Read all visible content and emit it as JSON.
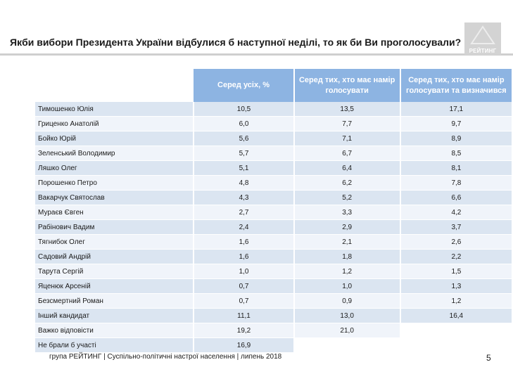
{
  "title": "Якби вибори Президента України відбулися б наступної неділі, то як би Ви проголосували?",
  "logo": {
    "text": "РЕЙТИНГ",
    "color": "#d3d3d3"
  },
  "table": {
    "headers": [
      "Серед усіх, %",
      "Серед тих, хто має намір голосувати",
      "Серед тих, хто має намір голосувати та визначився"
    ],
    "header_color": "#8db4e2",
    "rows": [
      {
        "name": "Тимошенко Юлія",
        "v1": "10,5",
        "v2": "13,5",
        "v3": "17,1"
      },
      {
        "name": "Гриценко Анатолій",
        "v1": "6,0",
        "v2": "7,7",
        "v3": "9,7"
      },
      {
        "name": "Бойко Юрій",
        "v1": "5,6",
        "v2": "7,1",
        "v3": "8,9"
      },
      {
        "name": "Зеленський Володимир",
        "v1": "5,7",
        "v2": "6,7",
        "v3": "8,5"
      },
      {
        "name": "Ляшко Олег",
        "v1": "5,1",
        "v2": "6,4",
        "v3": "8,1"
      },
      {
        "name": "Порошенко Петро",
        "v1": "4,8",
        "v2": "6,2",
        "v3": "7,8"
      },
      {
        "name": "Вакарчук Святослав",
        "v1": "4,3",
        "v2": "5,2",
        "v3": "6,6"
      },
      {
        "name": "Мураєв Євген",
        "v1": "2,7",
        "v2": "3,3",
        "v3": "4,2"
      },
      {
        "name": "Рабінович Вадим",
        "v1": "2,4",
        "v2": "2,9",
        "v3": "3,7"
      },
      {
        "name": "Тягнибок Олег",
        "v1": "1,6",
        "v2": "2,1",
        "v3": "2,6"
      },
      {
        "name": "Садовий Андрій",
        "v1": "1,6",
        "v2": "1,8",
        "v3": "2,2"
      },
      {
        "name": "Тарута Сергій",
        "v1": "1,0",
        "v2": "1,2",
        "v3": "1,5"
      },
      {
        "name": "Яценюк Арсеній",
        "v1": "0,7",
        "v2": "1,0",
        "v3": "1,3"
      },
      {
        "name": "Безсмертний Роман",
        "v1": "0,7",
        "v2": "0,9",
        "v3": "1,2"
      },
      {
        "name": "Інший кандидат",
        "v1": "11,1",
        "v2": "13,0",
        "v3": "16,4"
      },
      {
        "name": "Важко відповісти",
        "v1": "19,2",
        "v2": "21,0",
        "v3": ""
      },
      {
        "name": "Не брали б участі",
        "v1": "16,9",
        "v2": "",
        "v3": ""
      }
    ]
  },
  "footer": "група РЕЙТИНГ | Суспільно-політичні настрої населення | липень 2018",
  "page_number": "5"
}
